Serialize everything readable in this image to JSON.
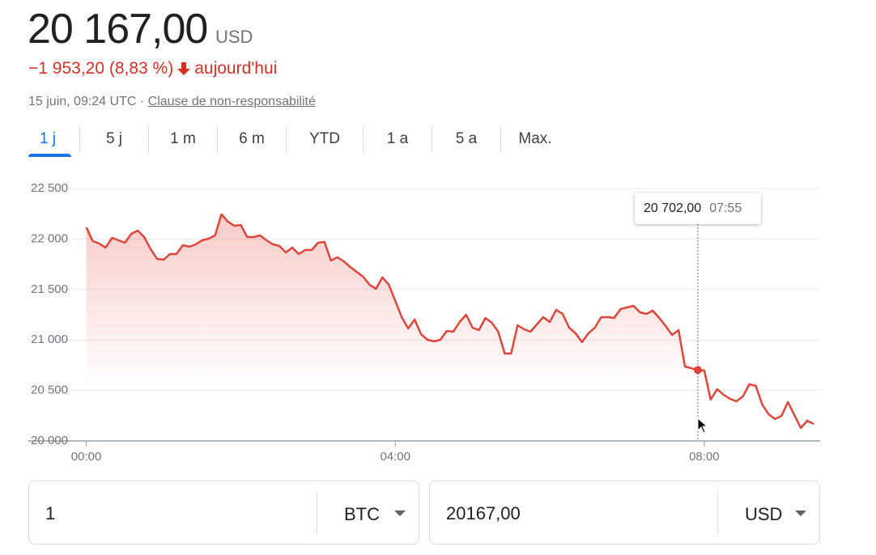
{
  "header": {
    "price": "20 167,00",
    "currency": "USD",
    "change": "−1 953,20 (8,83 %)",
    "change_period": "aujourd'hui",
    "timestamp": "15 juin, 09:24 UTC ·",
    "disclaimer": "Clause de non-responsabilité"
  },
  "tabs": [
    "1 j",
    "5 j",
    "1 m",
    "6 m",
    "YTD",
    "1 a",
    "5 a",
    "Max."
  ],
  "chart_data": {
    "type": "line",
    "color": "#e0453a",
    "grid": true,
    "x": [
      0,
      5,
      10,
      15,
      20,
      25,
      30,
      35,
      40,
      45,
      50,
      55,
      60,
      65,
      70,
      75,
      80,
      85,
      90,
      95,
      100,
      105,
      110,
      115,
      120,
      125,
      130,
      135,
      140,
      145,
      150,
      155,
      160,
      165,
      170,
      175,
      180,
      185,
      190,
      195,
      200,
      205,
      210,
      215,
      220,
      225,
      230,
      235,
      240,
      245,
      250,
      255,
      260,
      265,
      270,
      275,
      280,
      285,
      290,
      295,
      300,
      305,
      310,
      315,
      320,
      325,
      330,
      335,
      340,
      345,
      350,
      355,
      360,
      365,
      370,
      375,
      380,
      385,
      390,
      395,
      400,
      405,
      410,
      415,
      420,
      425,
      430,
      435,
      440,
      445,
      450,
      455,
      460,
      465,
      475,
      480,
      485,
      490,
      495,
      500,
      505,
      510,
      515,
      520,
      525,
      530,
      535,
      540,
      545,
      550,
      555,
      560,
      565
    ],
    "values": [
      22115,
      21979,
      21955,
      21915,
      22011,
      21987,
      21963,
      22051,
      22083,
      22019,
      21899,
      21803,
      21795,
      21851,
      21851,
      21939,
      21923,
      21947,
      21987,
      22003,
      22035,
      22244,
      22172,
      22131,
      22139,
      22019,
      22019,
      22035,
      21987,
      21947,
      21931,
      21867,
      21915,
      21851,
      21891,
      21891,
      21963,
      21971,
      21787,
      21819,
      21779,
      21723,
      21675,
      21627,
      21547,
      21507,
      21619,
      21547,
      21387,
      21226,
      21114,
      21202,
      21058,
      21002,
      20986,
      21002,
      21090,
      21082,
      21178,
      21250,
      21122,
      21098,
      21218,
      21170,
      21082,
      20865,
      20865,
      21146,
      21106,
      21082,
      21154,
      21226,
      21178,
      21298,
      21258,
      21122,
      21066,
      20978,
      21066,
      21122,
      21226,
      21226,
      21218,
      21306,
      21322,
      21338,
      21274,
      21258,
      21290,
      21218,
      21138,
      21050,
      21098,
      20737,
      20702,
      20697,
      20409,
      20513,
      20457,
      20417,
      20393,
      20441,
      20561,
      20545,
      20361,
      20264,
      20216,
      20248,
      20385,
      20256,
      20128,
      20200,
      20168
    ],
    "xlim": [
      -45,
      570
    ],
    "xticks": [
      {
        "value": 0,
        "label": "00:00"
      },
      {
        "value": 240,
        "label": "04:00"
      },
      {
        "value": 480,
        "label": "08:00"
      }
    ],
    "ylim": [
      20000,
      22500
    ],
    "yticks": [
      {
        "value": 20000,
        "label": "20 000"
      },
      {
        "value": 20500,
        "label": "20 500"
      },
      {
        "value": 21000,
        "label": "21 000"
      },
      {
        "value": 21500,
        "label": "21 500"
      },
      {
        "value": 22000,
        "label": "22 000"
      },
      {
        "value": 22500,
        "label": "22 500"
      }
    ],
    "tooltip": {
      "value_label": "20 702,00",
      "time": "07:55"
    }
  },
  "converter": {
    "amount": "1",
    "from": "BTC",
    "result": "20167,00",
    "to": "USD"
  }
}
